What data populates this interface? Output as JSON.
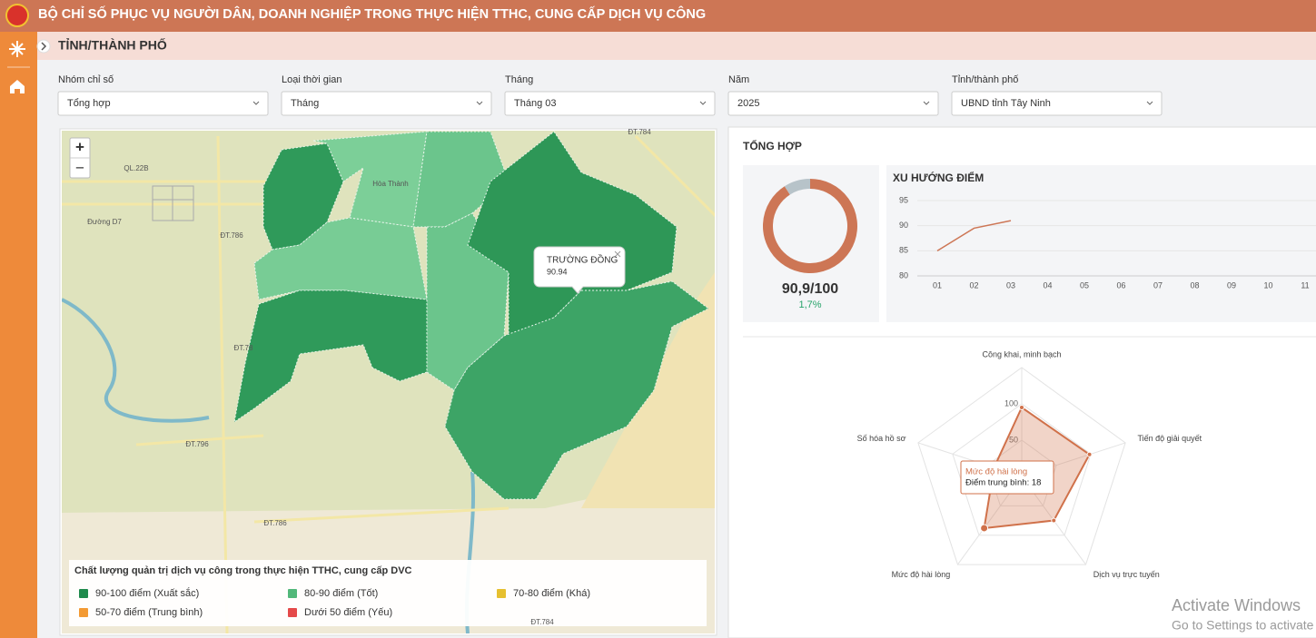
{
  "header": {
    "title": "BỘ CHỈ SỐ PHỤC VỤ NGƯỜI DÂN, DOANH NGHIỆP TRONG THỰC HIỆN TTHC, CUNG CẤP DỊCH VỤ CÔNG"
  },
  "page_title": "TỈNH/THÀNH PHỐ",
  "filters": [
    {
      "label": "Nhóm chỉ số",
      "value": "Tổng hợp"
    },
    {
      "label": "Loại thời gian",
      "value": "Tháng"
    },
    {
      "label": "Tháng",
      "value": "Tháng 03"
    },
    {
      "label": "Năm",
      "value": "2025"
    },
    {
      "label": "Tỉnh/thành phố",
      "value": "UBND tỉnh Tây Ninh"
    }
  ],
  "map": {
    "zoom_in": "+",
    "zoom_out": "−",
    "place_labels": [
      "QL.22B",
      "Đường D7",
      "ĐT.786",
      "ĐT.78",
      "ĐT.796",
      "ĐT.786",
      "ĐT.784",
      "Hòa Thành",
      "ĐT.784"
    ],
    "tooltip": {
      "name": "TRƯỜNG ĐỒNG",
      "score": 90.94
    },
    "legend": {
      "title": "Chất lượng quản trị dịch vụ công trong thực hiện TTHC, cung cấp DVC",
      "items": [
        {
          "label": "90-100 điểm (Xuất sắc)",
          "color": "#1f8a4d"
        },
        {
          "label": "80-90 điểm (Tốt)",
          "color": "#52b87a"
        },
        {
          "label": "70-80 điểm (Khá)",
          "color": "#e6c030"
        },
        {
          "label": "50-70 điểm (Trung bình)",
          "color": "#f39a33"
        },
        {
          "label": "Dưới 50 điểm (Yếu)",
          "color": "#e54a4a"
        }
      ]
    }
  },
  "summary": {
    "title": "TỔNG HỢP",
    "score": 90.9,
    "max": 100,
    "score_label": "90,9/100",
    "change_label": "1,7%",
    "color": "#cd7655",
    "rest_color": "#b7c3c9"
  },
  "chart_data": [
    {
      "type": "line",
      "title": "XU HƯỚNG ĐIỂM",
      "categories": [
        "01",
        "02",
        "03",
        "04",
        "05",
        "06",
        "07",
        "08",
        "09",
        "10",
        "11"
      ],
      "values": [
        85,
        89.5,
        91,
        null,
        null,
        null,
        null,
        null,
        null,
        null,
        null
      ],
      "color": "#cd7655",
      "ylim": [
        80,
        95
      ],
      "yticks": [
        80,
        85,
        90,
        95
      ],
      "grid": true
    },
    {
      "type": "radar",
      "categories": [
        "Công khai, minh bạch",
        "Tiến độ giải quyết",
        "Dịch vụ trực tuyến",
        "Mức độ hài lòng",
        "Số hóa hồ sơ"
      ],
      "values": [
        95,
        98,
        75,
        88,
        40
      ],
      "color": "#d0714a",
      "rlim": [
        0,
        150
      ],
      "rticks": [
        50,
        100
      ],
      "tooltip": {
        "title": "Mức độ hài lòng",
        "text": "Điểm trung bình: 18"
      }
    }
  ],
  "os_watermark": {
    "title": "Activate Windows",
    "subtitle": "Go to Settings to activate Windows."
  }
}
